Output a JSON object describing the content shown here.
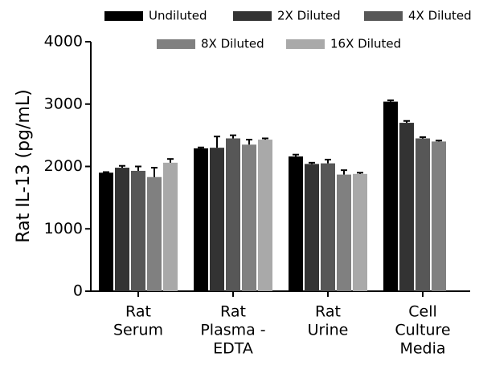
{
  "chart_data": {
    "type": "bar",
    "y_label": "Rat IL-13 (pg/mL)",
    "categories": [
      [
        "Rat",
        "Serum"
      ],
      [
        "Rat",
        "Plasma -",
        "EDTA"
      ],
      [
        "Rat",
        "Urine"
      ],
      [
        "Cell",
        "Culture",
        "Media"
      ]
    ],
    "series": [
      {
        "name": "Undiluted",
        "color": "#000000",
        "values": [
          1900,
          2290,
          2160,
          3040
        ],
        "errors": [
          10,
          15,
          30,
          20
        ]
      },
      {
        "name": "2X Diluted",
        "color": "#333333",
        "values": [
          1980,
          2300,
          2040,
          2700
        ],
        "errors": [
          30,
          180,
          20,
          30
        ]
      },
      {
        "name": "4X Diluted",
        "color": "#575757",
        "values": [
          1930,
          2450,
          2050,
          2450
        ],
        "errors": [
          70,
          50,
          60,
          20
        ]
      },
      {
        "name": "8X Diluted",
        "color": "#808080",
        "values": [
          1830,
          2350,
          1870,
          2400
        ],
        "errors": [
          150,
          80,
          70,
          15
        ]
      },
      {
        "name": "16X Diluted",
        "color": "#a9a9a9",
        "values": [
          2060,
          2430,
          1880,
          null
        ],
        "errors": [
          60,
          20,
          20,
          null
        ]
      }
    ],
    "ylim": [
      0,
      4000
    ],
    "yticks": [
      0,
      1000,
      2000,
      3000,
      4000
    ]
  }
}
